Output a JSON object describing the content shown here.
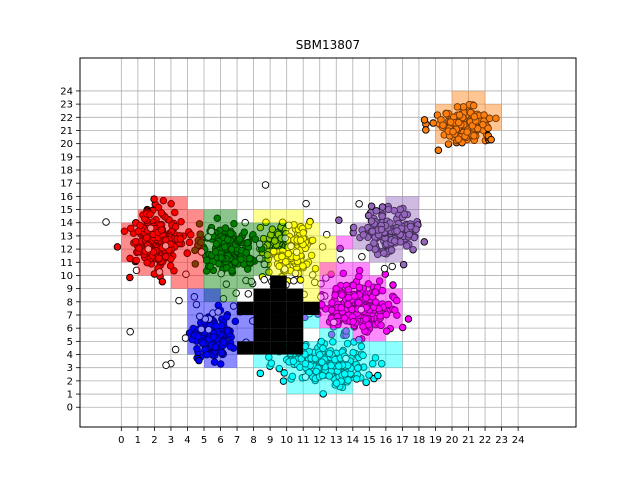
{
  "chart_data": {
    "type": "scatter",
    "title": "SBM13807",
    "xlabel": "",
    "ylabel": "",
    "xlim": [
      -2.5,
      27.5
    ],
    "ylim": [
      -1.5,
      26.5
    ],
    "x_ticks": [
      "0",
      "1",
      "2",
      "3",
      "4",
      "5",
      "6",
      "7",
      "8",
      "9",
      "10",
      "11",
      "12",
      "13",
      "14",
      "15",
      "16",
      "17",
      "18",
      "19",
      "20",
      "21",
      "22",
      "23",
      "24"
    ],
    "y_ticks": [
      "0",
      "1",
      "2",
      "3",
      "4",
      "5",
      "6",
      "7",
      "8",
      "9",
      "10",
      "11",
      "12",
      "13",
      "14",
      "15",
      "16",
      "17",
      "18",
      "19",
      "20",
      "21",
      "22",
      "23",
      "24"
    ],
    "grid": true,
    "legend": "none",
    "point_edge_color": "#000000",
    "clusters": [
      {
        "color": "#ff0000",
        "center": [
          2.2,
          12.6
        ],
        "spread": [
          1.3,
          1.8
        ],
        "count": 220
      },
      {
        "color": "#ff7f0e",
        "center": [
          20.7,
          21.4
        ],
        "spread": [
          1.4,
          1.2
        ],
        "count": 170
      },
      {
        "color": "#9467bd",
        "center": [
          16.2,
          13.4
        ],
        "spread": [
          1.5,
          1.5
        ],
        "count": 170
      },
      {
        "color": "#ff00ff",
        "center": [
          14.3,
          7.5
        ],
        "spread": [
          1.7,
          1.7
        ],
        "count": 200
      },
      {
        "color": "#00ffff",
        "center": [
          12.5,
          3.3
        ],
        "spread": [
          2.2,
          1.4
        ],
        "count": 200
      },
      {
        "color": "#ffff00",
        "center": [
          10.0,
          12.0
        ],
        "spread": [
          1.3,
          1.6
        ],
        "count": 170
      },
      {
        "color": "#008000",
        "center": [
          6.3,
          12.0
        ],
        "spread": [
          1.3,
          1.5
        ],
        "count": 170
      },
      {
        "color": "#0000ff",
        "center": [
          5.5,
          5.3
        ],
        "spread": [
          1.0,
          1.5
        ],
        "count": 150
      },
      {
        "color": "#ffffff",
        "center": [
          8.5,
          9.0
        ],
        "spread": [
          6.0,
          5.0
        ],
        "count": 80
      }
    ],
    "grid_cells": [
      {
        "color": "#ff0000",
        "cells": [
          [
            0,
            11
          ],
          [
            0,
            12
          ],
          [
            0,
            13
          ],
          [
            1,
            10
          ],
          [
            1,
            11
          ],
          [
            1,
            12
          ],
          [
            1,
            13
          ],
          [
            1,
            14
          ],
          [
            2,
            10
          ],
          [
            2,
            11
          ],
          [
            2,
            12
          ],
          [
            2,
            13
          ],
          [
            2,
            14
          ],
          [
            2,
            15
          ],
          [
            3,
            9
          ],
          [
            3,
            10
          ],
          [
            3,
            11
          ],
          [
            3,
            12
          ],
          [
            3,
            13
          ],
          [
            3,
            14
          ],
          [
            3,
            15
          ],
          [
            4,
            9
          ],
          [
            4,
            10
          ],
          [
            4,
            11
          ],
          [
            4,
            12
          ],
          [
            4,
            13
          ],
          [
            4,
            14
          ]
        ]
      },
      {
        "color": "#008000",
        "cells": [
          [
            5,
            8
          ],
          [
            5,
            9
          ],
          [
            5,
            10
          ],
          [
            5,
            11
          ],
          [
            5,
            12
          ],
          [
            5,
            13
          ],
          [
            5,
            14
          ],
          [
            6,
            8
          ],
          [
            6,
            9
          ],
          [
            6,
            10
          ],
          [
            6,
            11
          ],
          [
            6,
            12
          ],
          [
            6,
            13
          ],
          [
            6,
            14
          ],
          [
            7,
            9
          ],
          [
            7,
            10
          ],
          [
            7,
            11
          ],
          [
            7,
            12
          ],
          [
            7,
            13
          ],
          [
            8,
            10
          ],
          [
            8,
            11
          ],
          [
            8,
            12
          ],
          [
            8,
            13
          ],
          [
            9,
            12
          ],
          [
            9,
            13
          ]
        ]
      },
      {
        "color": "#ffff00",
        "cells": [
          [
            8,
            14
          ],
          [
            9,
            14
          ],
          [
            9,
            10
          ],
          [
            9,
            11
          ],
          [
            10,
            10
          ],
          [
            10,
            11
          ],
          [
            10,
            12
          ],
          [
            10,
            13
          ],
          [
            10,
            14
          ],
          [
            11,
            8
          ],
          [
            11,
            9
          ],
          [
            11,
            10
          ],
          [
            11,
            11
          ],
          [
            11,
            12
          ],
          [
            11,
            13
          ],
          [
            12,
            10
          ],
          [
            12,
            11
          ],
          [
            12,
            12
          ]
        ]
      },
      {
        "color": "#ff00ff",
        "cells": [
          [
            12,
            6
          ],
          [
            12,
            7
          ],
          [
            12,
            8
          ],
          [
            12,
            9
          ],
          [
            12,
            10
          ],
          [
            13,
            6
          ],
          [
            13,
            7
          ],
          [
            13,
            8
          ],
          [
            13,
            9
          ],
          [
            13,
            10
          ],
          [
            14,
            5
          ],
          [
            14,
            6
          ],
          [
            14,
            7
          ],
          [
            14,
            8
          ],
          [
            14,
            9
          ],
          [
            14,
            10
          ],
          [
            15,
            5
          ],
          [
            15,
            6
          ],
          [
            15,
            7
          ],
          [
            15,
            8
          ],
          [
            15,
            9
          ],
          [
            16,
            6
          ],
          [
            16,
            7
          ],
          [
            16,
            8
          ],
          [
            13,
            12
          ]
        ]
      },
      {
        "color": "#9467bd",
        "cells": [
          [
            14,
            12
          ],
          [
            14,
            13
          ],
          [
            15,
            11
          ],
          [
            15,
            12
          ],
          [
            15,
            13
          ],
          [
            15,
            14
          ],
          [
            16,
            11
          ],
          [
            16,
            12
          ],
          [
            16,
            13
          ],
          [
            16,
            14
          ],
          [
            16,
            15
          ],
          [
            17,
            12
          ],
          [
            17,
            13
          ],
          [
            17,
            14
          ],
          [
            17,
            15
          ]
        ]
      },
      {
        "color": "#ff7f0e",
        "cells": [
          [
            19,
            20
          ],
          [
            19,
            21
          ],
          [
            19,
            22
          ],
          [
            20,
            20
          ],
          [
            20,
            21
          ],
          [
            20,
            22
          ],
          [
            20,
            23
          ],
          [
            21,
            20
          ],
          [
            21,
            21
          ],
          [
            21,
            22
          ],
          [
            21,
            23
          ],
          [
            22,
            21
          ],
          [
            22,
            22
          ]
        ]
      },
      {
        "color": "#0000ff",
        "cells": [
          [
            4,
            4
          ],
          [
            4,
            5
          ],
          [
            4,
            6
          ],
          [
            4,
            7
          ],
          [
            4,
            8
          ],
          [
            5,
            3
          ],
          [
            5,
            4
          ],
          [
            5,
            5
          ],
          [
            5,
            6
          ],
          [
            5,
            7
          ],
          [
            5,
            8
          ],
          [
            6,
            3
          ],
          [
            6,
            4
          ],
          [
            6,
            5
          ],
          [
            6,
            6
          ],
          [
            6,
            7
          ],
          [
            7,
            5
          ],
          [
            7,
            6
          ]
        ]
      },
      {
        "color": "#00ffff",
        "cells": [
          [
            8,
            3
          ],
          [
            9,
            3
          ],
          [
            10,
            1
          ],
          [
            10,
            2
          ],
          [
            10,
            3
          ],
          [
            11,
            1
          ],
          [
            11,
            2
          ],
          [
            11,
            3
          ],
          [
            11,
            4
          ],
          [
            12,
            1
          ],
          [
            12,
            2
          ],
          [
            12,
            3
          ],
          [
            12,
            4
          ],
          [
            12,
            5
          ],
          [
            13,
            1
          ],
          [
            13,
            2
          ],
          [
            13,
            3
          ],
          [
            13,
            4
          ],
          [
            13,
            5
          ],
          [
            14,
            2
          ],
          [
            14,
            3
          ],
          [
            14,
            4
          ],
          [
            15,
            3
          ],
          [
            15,
            4
          ],
          [
            16,
            3
          ],
          [
            16,
            4
          ],
          [
            11,
            6
          ]
        ]
      },
      {
        "color": "#000000",
        "cells": [
          [
            7,
            4
          ],
          [
            7,
            7
          ],
          [
            8,
            4
          ],
          [
            8,
            5
          ],
          [
            8,
            6
          ],
          [
            8,
            7
          ],
          [
            8,
            8
          ],
          [
            9,
            4
          ],
          [
            9,
            5
          ],
          [
            9,
            6
          ],
          [
            9,
            7
          ],
          [
            9,
            8
          ],
          [
            9,
            9
          ],
          [
            10,
            4
          ],
          [
            10,
            5
          ],
          [
            10,
            6
          ],
          [
            10,
            7
          ],
          [
            10,
            8
          ],
          [
            11,
            7
          ]
        ]
      }
    ]
  }
}
